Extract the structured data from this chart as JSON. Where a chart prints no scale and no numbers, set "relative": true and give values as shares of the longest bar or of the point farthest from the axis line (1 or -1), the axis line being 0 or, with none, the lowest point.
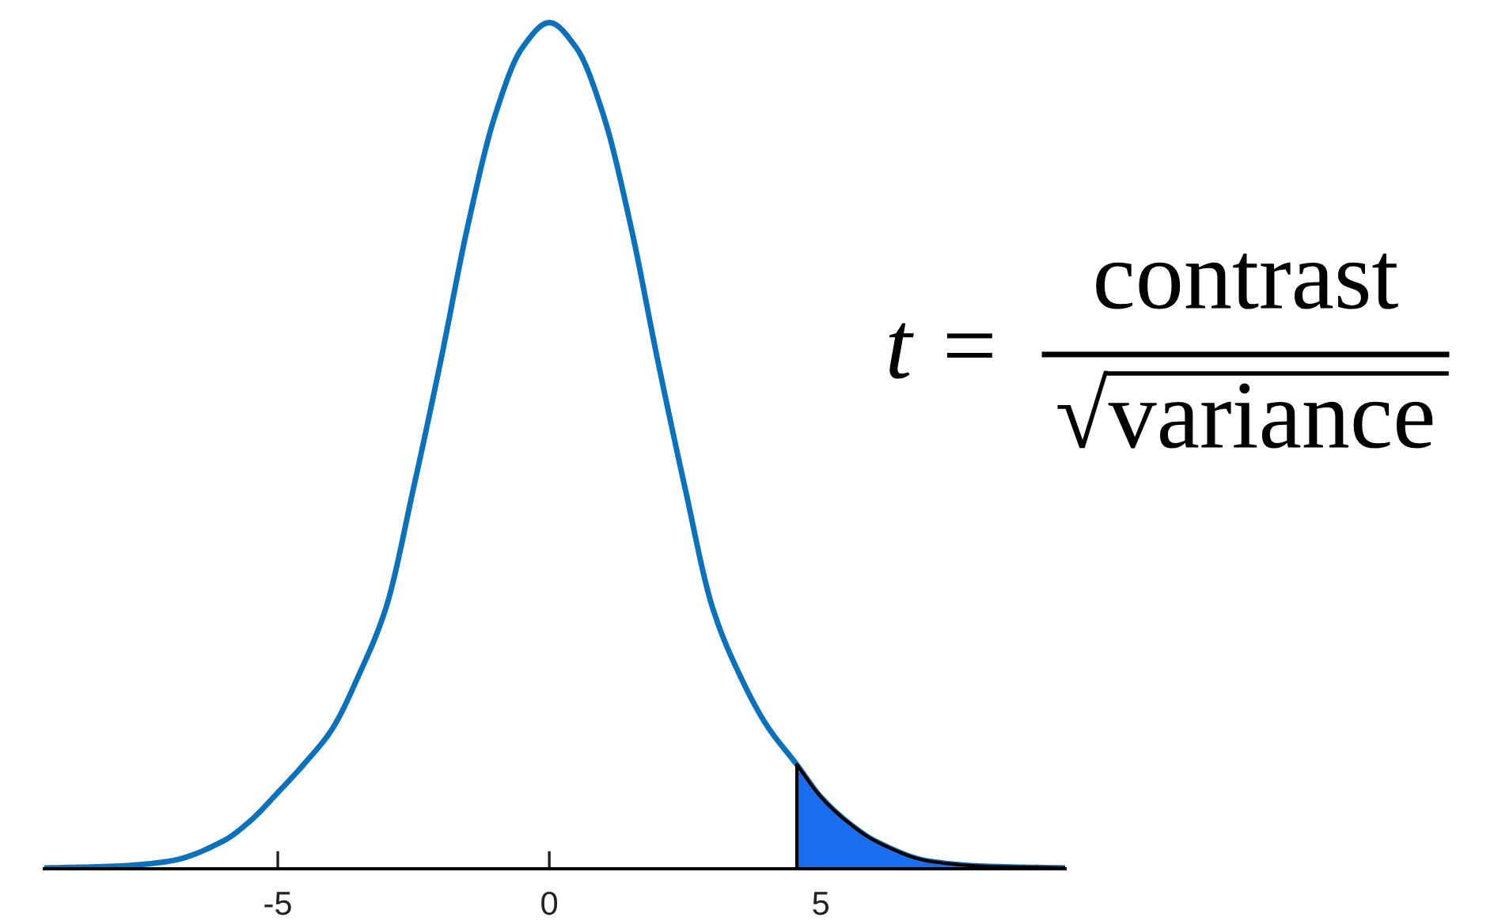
{
  "chart_data": {
    "type": "line",
    "relative": true,
    "xlim": [
      -9.3,
      9.5
    ],
    "xticks": [
      -5,
      0,
      5
    ],
    "tick_labels": "x",
    "grid": false,
    "legend": false,
    "marker": "none",
    "line_style": "solid",
    "series": [
      {
        "color": "#0a72bd",
        "x": [
          -9.3,
          -8,
          -7,
          -6,
          -5.5,
          -5,
          -4.5,
          -4,
          -3.5,
          -3,
          -2.5,
          -2,
          -1.5,
          -1,
          -0.5,
          0,
          0.5,
          1,
          1.5,
          2,
          2.5,
          3,
          3.5,
          4,
          4.56,
          5,
          5.5,
          6,
          7,
          8,
          9.5
        ],
        "values": [
          0.001,
          0.003,
          0.009,
          0.033,
          0.057,
          0.09,
          0.125,
          0.165,
          0.23,
          0.31,
          0.45,
          0.6,
          0.76,
          0.89,
          0.97,
          1,
          0.97,
          0.89,
          0.76,
          0.6,
          0.45,
          0.31,
          0.23,
          0.17,
          0.123,
          0.085,
          0.055,
          0.033,
          0.009,
          0.003,
          0.001
        ]
      },
      {
        "type": "area",
        "color": "#1a6ff0",
        "x": [
          4.56,
          5,
          5.5,
          6,
          7,
          8,
          9.5
        ],
        "values": [
          0.123,
          0.085,
          0.055,
          0.033,
          0.009,
          0.003,
          0.001
        ]
      }
    ],
    "annotations": [
      "t =",
      "contrast",
      "√variance"
    ]
  }
}
